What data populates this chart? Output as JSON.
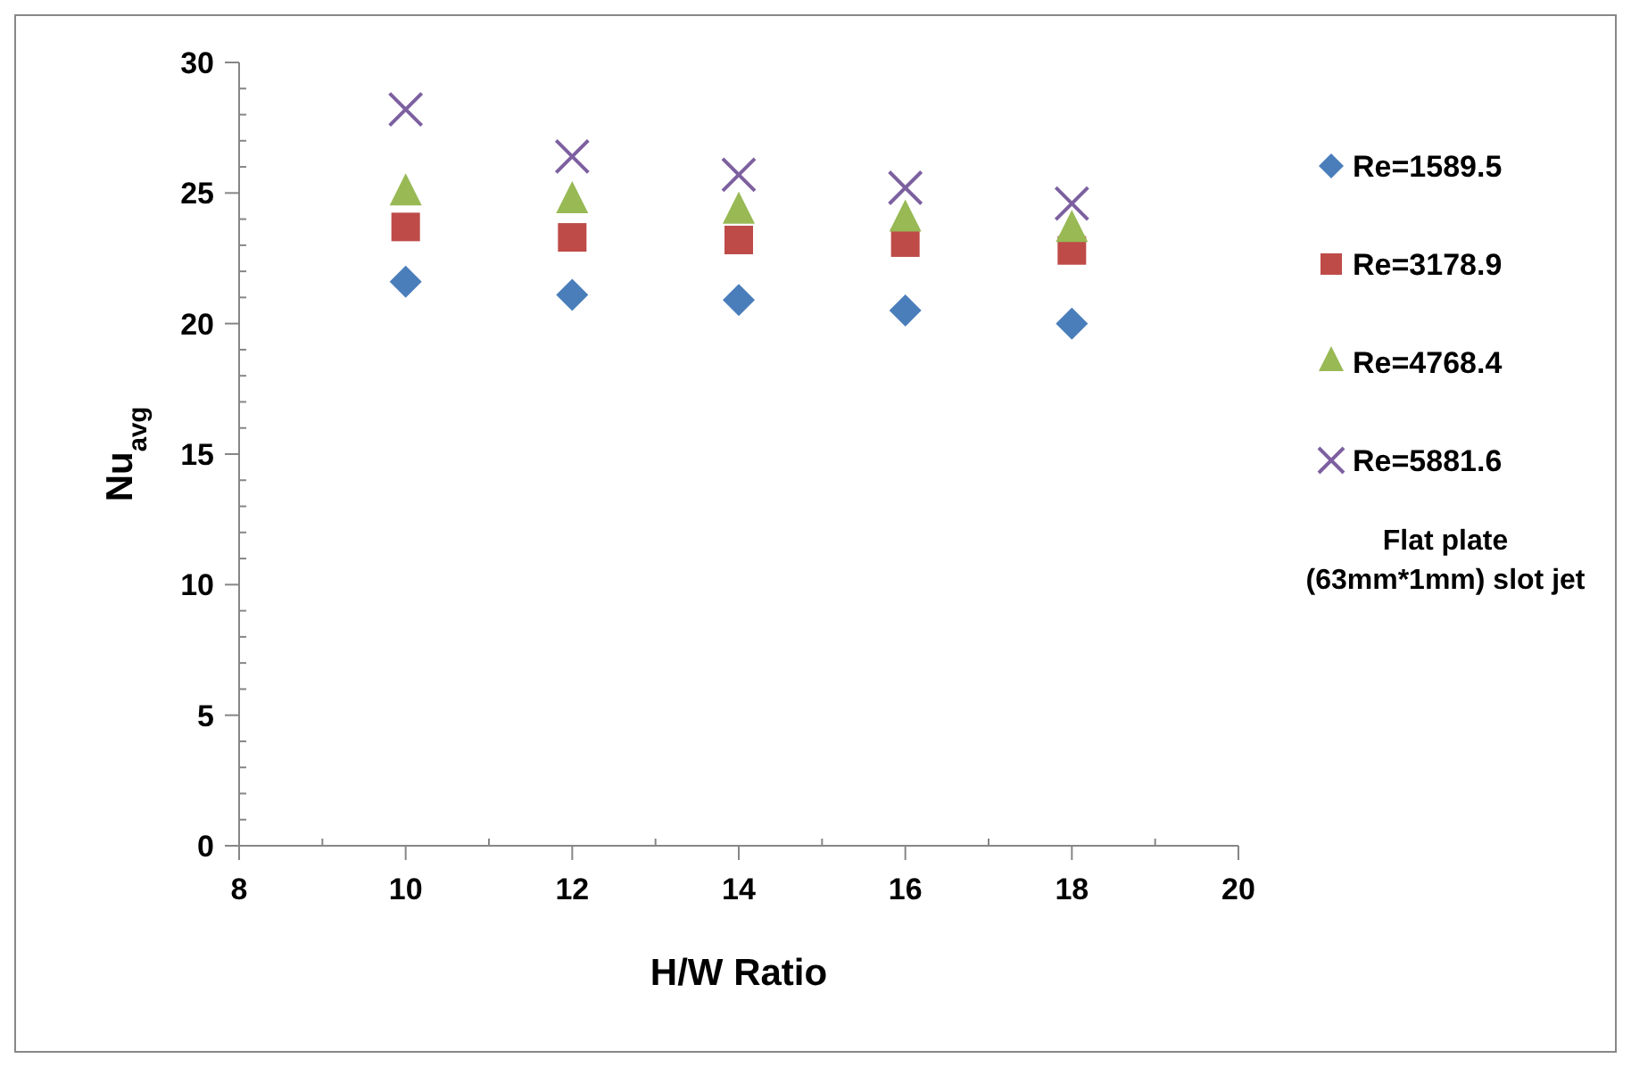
{
  "chart_data": {
    "type": "scatter",
    "xlabel": "H/W Ratio",
    "ylabel": "Nu$_{avg}$",
    "x": [
      10,
      12,
      14,
      16,
      18
    ],
    "xlim": [
      8,
      20
    ],
    "xticks": [
      8,
      {
        "value": 9,
        "label": null
      },
      10,
      {
        "value": 11,
        "label": null
      },
      12,
      {
        "value": 13,
        "label": null
      },
      14,
      {
        "value": 15,
        "label": null
      },
      16,
      {
        "value": 17,
        "label": null
      },
      18,
      {
        "value": 19,
        "label": null
      },
      20
    ],
    "ylim": [
      0,
      30
    ],
    "yticks": [
      0,
      {
        "value": 1,
        "label": null
      },
      {
        "value": 2,
        "label": null
      },
      {
        "value": 3,
        "label": null
      },
      {
        "value": 4,
        "label": null
      },
      5,
      {
        "value": 6,
        "label": null
      },
      {
        "value": 7,
        "label": null
      },
      {
        "value": 8,
        "label": null
      },
      {
        "value": 9,
        "label": null
      },
      10,
      {
        "value": 11,
        "label": null
      },
      {
        "value": 12,
        "label": null
      },
      {
        "value": 13,
        "label": null
      },
      {
        "value": 14,
        "label": null
      },
      15,
      {
        "value": 16,
        "label": null
      },
      {
        "value": 17,
        "label": null
      },
      {
        "value": 18,
        "label": null
      },
      {
        "value": 19,
        "label": null
      },
      20,
      {
        "value": 21,
        "label": null
      },
      {
        "value": 22,
        "label": null
      },
      {
        "value": 23,
        "label": null
      },
      {
        "value": 24,
        "label": null
      },
      25,
      {
        "value": 26,
        "label": null
      },
      {
        "value": 27,
        "label": null
      },
      {
        "value": 28,
        "label": null
      },
      {
        "value": 29,
        "label": null
      },
      30
    ],
    "grid": false,
    "legend": "right",
    "annotations": [
      "Flat plate (63mm*1mm) slot jet"
    ],
    "series": [
      {
        "name": "Re=1589.5",
        "color": "#4a7ebb",
        "marker": "diamond",
        "values": [
          21.6,
          21.1,
          20.9,
          20.5,
          20.0
        ]
      },
      {
        "name": "Re=3178.9",
        "color": "#be4b48",
        "marker": "square",
        "values": [
          23.7,
          23.3,
          23.2,
          23.1,
          22.8
        ]
      },
      {
        "name": "Re=4768.4",
        "color": "#98b954",
        "marker": "triangle",
        "values": [
          25.0,
          24.7,
          24.3,
          24.0,
          23.6
        ]
      },
      {
        "name": "Re=5881.6",
        "color": "#7d60a0",
        "marker": "cross",
        "values": [
          28.2,
          26.4,
          25.7,
          25.2,
          24.6
        ]
      }
    ]
  }
}
